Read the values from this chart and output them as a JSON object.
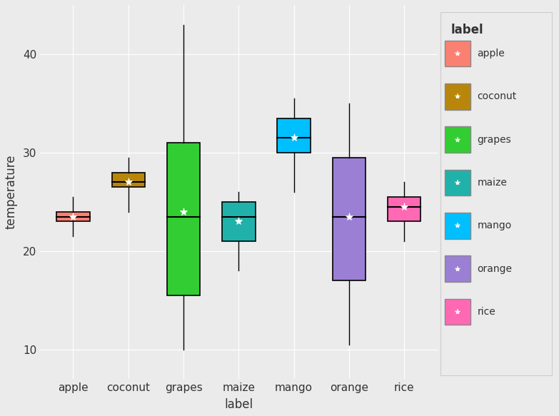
{
  "categories": [
    "apple",
    "coconut",
    "grapes",
    "maize",
    "mango",
    "orange",
    "rice"
  ],
  "colors": {
    "apple": "#FA8072",
    "coconut": "#B8860B",
    "grapes": "#32CD32",
    "maize": "#20B2AA",
    "mango": "#00BFFF",
    "orange": "#9B7FD4",
    "rice": "#FF69B4"
  },
  "box_stats": {
    "apple": {
      "whislo": 21.5,
      "q1": 23.0,
      "med": 23.5,
      "q3": 24.0,
      "whishi": 25.5,
      "mean": 23.5
    },
    "coconut": {
      "whislo": 24.0,
      "q1": 26.5,
      "med": 27.0,
      "q3": 28.0,
      "whishi": 29.5,
      "mean": 27.0
    },
    "grapes": {
      "whislo": 10.0,
      "q1": 15.5,
      "med": 23.5,
      "q3": 31.0,
      "whishi": 43.0,
      "mean": 24.0
    },
    "maize": {
      "whislo": 18.0,
      "q1": 21.0,
      "med": 23.5,
      "q3": 25.0,
      "whishi": 26.0,
      "mean": 23.0
    },
    "mango": {
      "whislo": 26.0,
      "q1": 30.0,
      "med": 31.5,
      "q3": 33.5,
      "whishi": 35.5,
      "mean": 31.5
    },
    "orange": {
      "whislo": 10.5,
      "q1": 17.0,
      "med": 23.5,
      "q3": 29.5,
      "whishi": 35.0,
      "mean": 23.5
    },
    "rice": {
      "whislo": 21.0,
      "q1": 23.0,
      "med": 24.5,
      "q3": 25.5,
      "whishi": 27.0,
      "mean": 24.5
    }
  },
  "title": "",
  "xlabel": "label",
  "ylabel": "temperature",
  "ylim": [
    7,
    45
  ],
  "yticks": [
    10,
    20,
    30,
    40
  ],
  "background_color": "#EBEBEB",
  "plot_bg_color": "#EBEBEB",
  "legend_title": "label",
  "grid_color": "#FFFFFF",
  "box_width": 0.6
}
